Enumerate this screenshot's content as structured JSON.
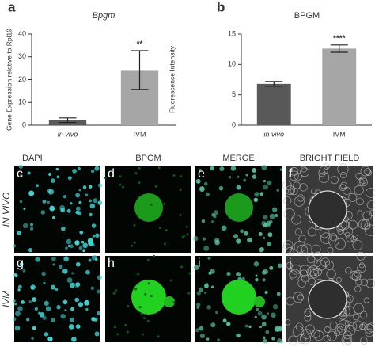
{
  "chart_data": [
    {
      "type": "bar",
      "panel": "a",
      "title": "Bpgm",
      "y_label": "Gene Expression relative to Rpl19",
      "categories": [
        "in vivo",
        "IVM"
      ],
      "values": [
        2.2,
        24.2
      ],
      "errors": [
        1.0,
        8.5
      ],
      "colors": [
        "#595959",
        "#a6a6a6"
      ],
      "annotation": "**",
      "ylim": [
        0,
        40
      ],
      "yticks": [
        0,
        10,
        20,
        30,
        40
      ]
    },
    {
      "type": "bar",
      "panel": "b",
      "title": "BPGM",
      "y_label": "Fluorescence Intensity",
      "categories": [
        "in vivo",
        "IVM"
      ],
      "values": [
        6.8,
        12.6
      ],
      "errors": [
        0.4,
        0.6
      ],
      "colors": [
        "#595959",
        "#a6a6a6"
      ],
      "annotation": "****",
      "ylim": [
        0,
        15
      ],
      "yticks": [
        0,
        5,
        10,
        15
      ]
    }
  ],
  "panels": {
    "columns": [
      "DAPI",
      "BPGM",
      "MERGE",
      "BRIGHT FIELD"
    ],
    "rows": [
      "IN VIVO",
      "IVM"
    ],
    "letters": [
      [
        "c",
        "d",
        "e",
        "f"
      ],
      [
        "g",
        "h",
        "i",
        "j"
      ]
    ]
  }
}
